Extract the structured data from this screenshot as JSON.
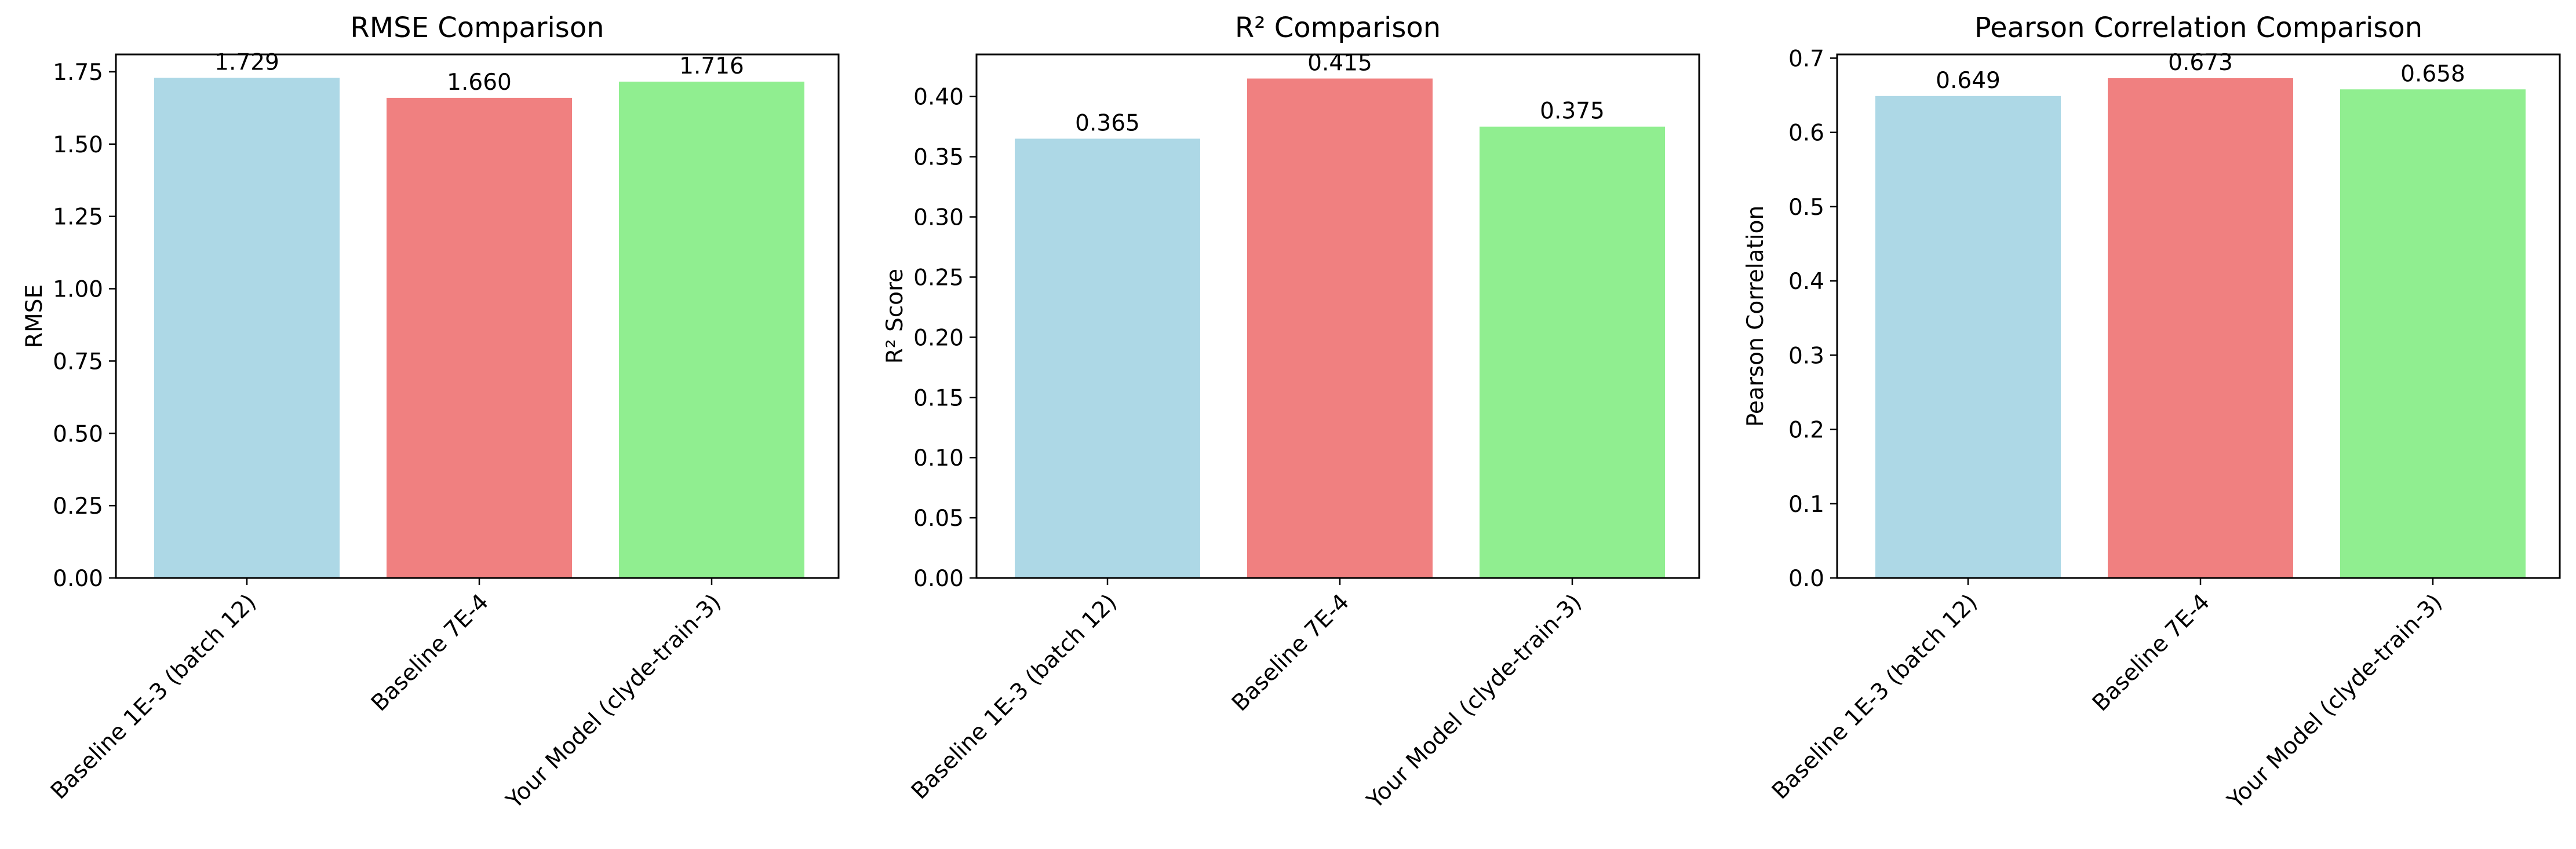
{
  "chart_data": [
    {
      "type": "bar",
      "title": "RMSE Comparison",
      "xlabel": "",
      "ylabel": "RMSE",
      "categories": [
        "Baseline 1E-3 (batch 12)",
        "Baseline 7E-4",
        "Your Model (clyde-train-3)"
      ],
      "values": [
        1.729,
        1.66,
        1.716
      ],
      "value_labels": [
        "1.729",
        "1.660",
        "1.716"
      ],
      "colors": [
        "#add8e6",
        "#f08080",
        "#90ee90"
      ],
      "ylim": [
        0,
        1.81
      ],
      "yticks": [
        0,
        0.25,
        0.5,
        0.75,
        1.0,
        1.25,
        1.5,
        1.75
      ],
      "ytick_labels": [
        "0.00",
        "0.25",
        "0.50",
        "0.75",
        "1.00",
        "1.25",
        "1.50",
        "1.75"
      ],
      "grid": false
    },
    {
      "type": "bar",
      "title": "R² Comparison",
      "xlabel": "",
      "ylabel": "R² Score",
      "categories": [
        "Baseline 1E-3 (batch 12)",
        "Baseline 7E-4",
        "Your Model (clyde-train-3)"
      ],
      "values": [
        0.365,
        0.415,
        0.375
      ],
      "value_labels": [
        "0.365",
        "0.415",
        "0.375"
      ],
      "colors": [
        "#add8e6",
        "#f08080",
        "#90ee90"
      ],
      "ylim": [
        0,
        0.435
      ],
      "yticks": [
        0,
        0.05,
        0.1,
        0.15,
        0.2,
        0.25,
        0.3,
        0.35,
        0.4
      ],
      "ytick_labels": [
        "0.00",
        "0.05",
        "0.10",
        "0.15",
        "0.20",
        "0.25",
        "0.30",
        "0.35",
        "0.40"
      ],
      "grid": false
    },
    {
      "type": "bar",
      "title": "Pearson Correlation Comparison",
      "xlabel": "",
      "ylabel": "Pearson Correlation",
      "categories": [
        "Baseline 1E-3 (batch 12)",
        "Baseline 7E-4",
        "Your Model (clyde-train-3)"
      ],
      "values": [
        0.649,
        0.673,
        0.658
      ],
      "value_labels": [
        "0.649",
        "0.673",
        "0.658"
      ],
      "colors": [
        "#add8e6",
        "#f08080",
        "#90ee90"
      ],
      "ylim": [
        0,
        0.705
      ],
      "yticks": [
        0,
        0.1,
        0.2,
        0.3,
        0.4,
        0.5,
        0.6,
        0.7
      ],
      "ytick_labels": [
        "0.0",
        "0.1",
        "0.2",
        "0.3",
        "0.4",
        "0.5",
        "0.6",
        "0.7"
      ],
      "grid": false
    }
  ]
}
